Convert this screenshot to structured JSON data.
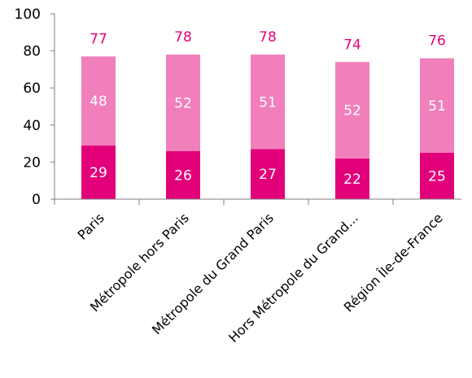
{
  "chart_data": {
    "type": "bar",
    "stacked": true,
    "categories": [
      "Paris",
      "Métropole hors Paris",
      "Métropole du Grand Paris",
      "Hors Métropole du Grand...",
      "Région Île-de-France"
    ],
    "series": [
      {
        "values": [
          29,
          26,
          27,
          22,
          25
        ],
        "color": "#e2007a"
      },
      {
        "values": [
          48,
          52,
          51,
          52,
          51
        ],
        "color": "#f07fbb"
      }
    ],
    "totals": [
      77,
      78,
      78,
      74,
      76
    ],
    "total_label_color": "#e2007a",
    "yticks": [
      0,
      20,
      40,
      60,
      80,
      100
    ],
    "ylim": [
      0,
      100
    ],
    "grid": false,
    "legend": "none"
  }
}
